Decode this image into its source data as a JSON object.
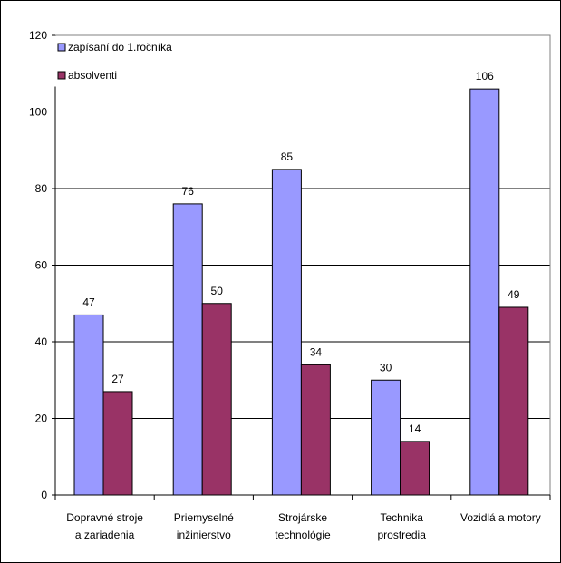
{
  "chart_data": {
    "type": "bar",
    "title": "",
    "xlabel": "",
    "ylabel": "",
    "ylim": [
      0,
      120
    ],
    "yticks": [
      0,
      20,
      40,
      60,
      80,
      100,
      120
    ],
    "grid": true,
    "legend_position": "top-left",
    "categories": [
      [
        "Dopravné stroje",
        "a zariadenia"
      ],
      [
        "Priemyselné",
        "inžinierstvo"
      ],
      [
        "Strojárske",
        "technológie"
      ],
      [
        "Technika",
        "prostredia"
      ],
      [
        "Vozidlá a motory"
      ]
    ],
    "series": [
      {
        "name": "zapísaní do 1.ročníka",
        "color": "#9999ff",
        "values": [
          47,
          76,
          85,
          30,
          106
        ]
      },
      {
        "name": "absolventi",
        "color": "#993366",
        "values": [
          27,
          50,
          34,
          14,
          49
        ]
      }
    ]
  }
}
